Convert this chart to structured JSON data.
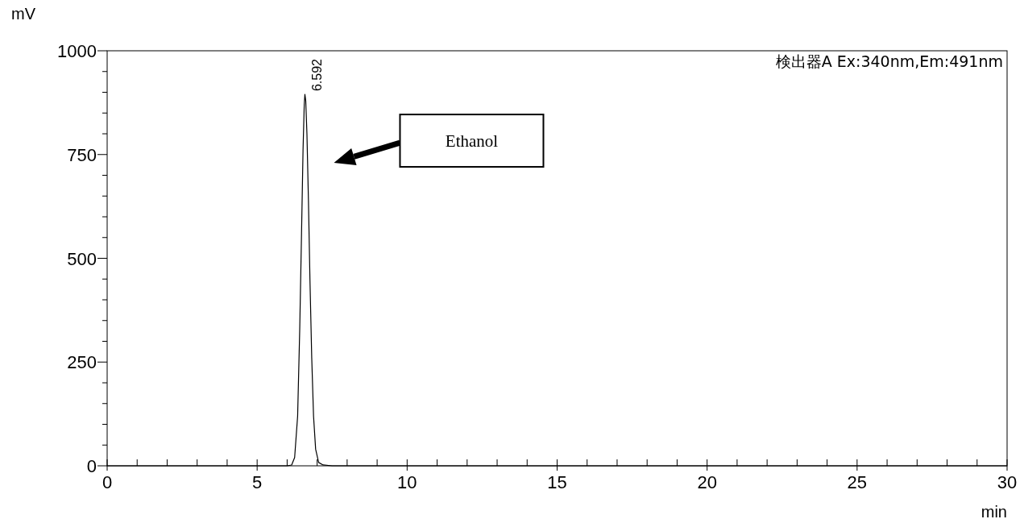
{
  "chart_data": {
    "type": "line",
    "xlabel": "min",
    "ylabel": "mV",
    "xlim": [
      0,
      30
    ],
    "ylim": [
      0,
      1000
    ],
    "xticks": [
      0,
      {
        "value": 1,
        "label": null
      },
      {
        "value": 2,
        "label": null
      },
      {
        "value": 3,
        "label": null
      },
      {
        "value": 4,
        "label": null
      },
      5,
      {
        "value": 6,
        "label": null
      },
      {
        "value": 7,
        "label": null
      },
      {
        "value": 8,
        "label": null
      },
      {
        "value": 9,
        "label": null
      },
      10,
      {
        "value": 11,
        "label": null
      },
      {
        "value": 12,
        "label": null
      },
      {
        "value": 13,
        "label": null
      },
      {
        "value": 14,
        "label": null
      },
      15,
      {
        "value": 16,
        "label": null
      },
      {
        "value": 17,
        "label": null
      },
      {
        "value": 18,
        "label": null
      },
      {
        "value": 19,
        "label": null
      },
      20,
      {
        "value": 21,
        "label": null
      },
      {
        "value": 22,
        "label": null
      },
      {
        "value": 23,
        "label": null
      },
      {
        "value": 24,
        "label": null
      },
      25,
      {
        "value": 26,
        "label": null
      },
      {
        "value": 27,
        "label": null
      },
      {
        "value": 28,
        "label": null
      },
      {
        "value": 29,
        "label": null
      },
      30
    ],
    "yticks": [
      0,
      {
        "value": 50,
        "label": null
      },
      {
        "value": 100,
        "label": null
      },
      {
        "value": 150,
        "label": null
      },
      {
        "value": 200,
        "label": null
      },
      250,
      {
        "value": 300,
        "label": null
      },
      {
        "value": 350,
        "label": null
      },
      {
        "value": 400,
        "label": null
      },
      {
        "value": 450,
        "label": null
      },
      500,
      {
        "value": 550,
        "label": null
      },
      {
        "value": 600,
        "label": null
      },
      {
        "value": 650,
        "label": null
      },
      {
        "value": 700,
        "label": null
      },
      750,
      {
        "value": 800,
        "label": null
      },
      {
        "value": 850,
        "label": null
      },
      {
        "value": 900,
        "label": null
      },
      {
        "value": 950,
        "label": null
      },
      1000
    ],
    "series": [
      {
        "color": "#000000",
        "x": [
          0,
          6.0,
          6.15,
          6.25,
          6.35,
          6.42,
          6.48,
          6.53,
          6.57,
          6.592,
          6.62,
          6.66,
          6.71,
          6.76,
          6.82,
          6.88,
          6.95,
          7.05,
          7.2,
          7.5,
          30
        ],
        "values": [
          0,
          0,
          2,
          20,
          120,
          330,
          560,
          760,
          870,
          895,
          880,
          800,
          640,
          450,
          260,
          120,
          40,
          8,
          2,
          0,
          0
        ]
      }
    ],
    "annotations": [
      {
        "text": "6.592",
        "x": 6.592,
        "y": 895
      },
      "Ethanol",
      "検出器A Ex:340nm,Em:491nm"
    ]
  }
}
